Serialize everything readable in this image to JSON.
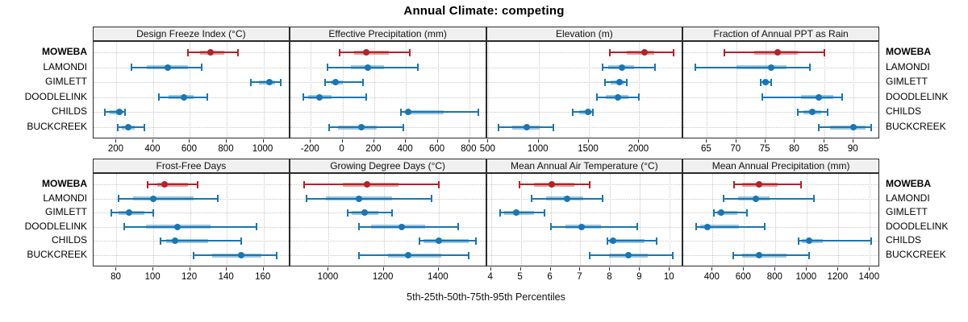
{
  "title": "Annual Climate: competing",
  "xlabel": "5th-25th-50th-75th-95th Percentiles",
  "sites": [
    "MOWEBA",
    "LAMONDI",
    "GIMLETT",
    "DOODLELINK",
    "CHILDS",
    "BUCKCREEK"
  ],
  "highlight_site": "MOWEBA",
  "percentile_labels": [
    "5th",
    "25th",
    "50th",
    "75th",
    "95th"
  ],
  "colors": {
    "highlight": "#b2232a",
    "normal": "#1976b4",
    "grid": "#c8c8c8",
    "strip_bg": "#f0f0f0",
    "border": "#2b2b2b"
  },
  "chart_data": {
    "type": "dotplot-interval",
    "note": "Each series value array is [5th, 25th, 50th, 75th, 95th] percentile; site order matches sites[]",
    "panels": [
      {
        "title": "Design Freeze Index (°C)",
        "xlim": [
          75,
          1146
        ],
        "ticks": [
          200,
          400,
          600,
          800,
          1000
        ],
        "values": [
          [
            590,
            655,
            710,
            785,
            860
          ],
          [
            280,
            365,
            480,
            590,
            665
          ],
          [
            930,
            975,
            1035,
            1065,
            1095
          ],
          [
            430,
            485,
            565,
            620,
            695
          ],
          [
            135,
            165,
            215,
            232,
            245
          ],
          [
            205,
            228,
            262,
            298,
            350
          ]
        ]
      },
      {
        "title": "Effective Precipitation (mm)",
        "xlim": [
          -330,
          910
        ],
        "ticks": [
          -200,
          0,
          200,
          400,
          600,
          800
        ],
        "values": [
          [
            -20,
            75,
            150,
            290,
            425
          ],
          [
            -95,
            55,
            160,
            260,
            475
          ],
          [
            -110,
            -75,
            -45,
            0,
            130
          ],
          [
            -245,
            -215,
            -145,
            -70,
            150
          ],
          [
            370,
            395,
            415,
            640,
            855
          ],
          [
            -85,
            -30,
            120,
            215,
            385
          ]
        ]
      },
      {
        "title": "Elevation (m)",
        "xlim": [
          485,
          2440
        ],
        "ticks": [
          500,
          1000,
          1500,
          2000
        ],
        "values": [
          [
            1710,
            1880,
            2055,
            2150,
            2340
          ],
          [
            1635,
            1695,
            1830,
            1950,
            2160
          ],
          [
            1660,
            1715,
            1805,
            1850,
            1880
          ],
          [
            1580,
            1670,
            1790,
            1895,
            2000
          ],
          [
            1340,
            1400,
            1490,
            1520,
            1540
          ],
          [
            605,
            740,
            880,
            1010,
            1145
          ]
        ]
      },
      {
        "title": "Fraction of Annual PPT as Rain",
        "xlim": [
          61,
          94.5
        ],
        "ticks": [
          65,
          70,
          75,
          80,
          85,
          90
        ],
        "values": [
          [
            68,
            73,
            77,
            80.5,
            85
          ],
          [
            63,
            70,
            76,
            78.5,
            82.5
          ],
          [
            74.2,
            74.6,
            75,
            75.5,
            76
          ],
          [
            74.5,
            81,
            84,
            86.5,
            88
          ],
          [
            80.5,
            81.5,
            83,
            84.5,
            85.5
          ],
          [
            84,
            86,
            90,
            92,
            93
          ]
        ]
      },
      {
        "title": "Frost-Free Days",
        "xlim": [
          67.5,
          174.5
        ],
        "ticks": [
          80,
          100,
          120,
          140,
          160
        ],
        "values": [
          [
            97,
            102,
            106,
            119,
            124
          ],
          [
            81,
            89,
            100,
            122,
            135
          ],
          [
            77,
            81,
            87,
            95,
            100
          ],
          [
            84,
            96,
            113,
            131,
            156
          ],
          [
            104,
            107,
            112,
            130,
            148
          ],
          [
            122,
            132,
            148,
            159,
            167
          ]
        ]
      },
      {
        "title": "Growing Degree Days (°C)",
        "xlim": [
          860,
          1575
        ],
        "ticks": [
          1000,
          1200,
          1400
        ],
        "values": [
          [
            910,
            1050,
            1140,
            1255,
            1400
          ],
          [
            920,
            990,
            1110,
            1230,
            1375
          ],
          [
            1070,
            1085,
            1130,
            1180,
            1230
          ],
          [
            1110,
            1155,
            1265,
            1350,
            1470
          ],
          [
            1330,
            1345,
            1400,
            1510,
            1535
          ],
          [
            1110,
            1215,
            1290,
            1410,
            1510
          ]
        ]
      },
      {
        "title": "Mean Annual Air Temperature (°C)",
        "xlim": [
          3.86,
          10.46
        ],
        "ticks": [
          4,
          5,
          6,
          7,
          8,
          9,
          10
        ],
        "values": [
          [
            4.95,
            5.45,
            6.05,
            6.8,
            7.3
          ],
          [
            5.35,
            5.85,
            6.55,
            7.1,
            7.75
          ],
          [
            4.3,
            4.45,
            4.85,
            5.45,
            5.8
          ],
          [
            6.0,
            6.5,
            7.05,
            7.7,
            8.9
          ],
          [
            7.9,
            7.95,
            8.1,
            9.15,
            9.55
          ],
          [
            7.3,
            7.95,
            8.6,
            9.25,
            10.1
          ]
        ]
      },
      {
        "title": "Mean Annual Precipitation (mm)",
        "xlim": [
          215,
          1465
        ],
        "ticks": [
          400,
          600,
          800,
          1000,
          1200,
          1400
        ],
        "values": [
          [
            535,
            590,
            695,
            815,
            960
          ],
          [
            470,
            560,
            675,
            760,
            1045
          ],
          [
            410,
            430,
            457,
            555,
            620
          ],
          [
            295,
            320,
            370,
            570,
            730
          ],
          [
            945,
            965,
            1015,
            1100,
            1410
          ],
          [
            530,
            590,
            695,
            870,
            1015
          ]
        ]
      }
    ]
  }
}
